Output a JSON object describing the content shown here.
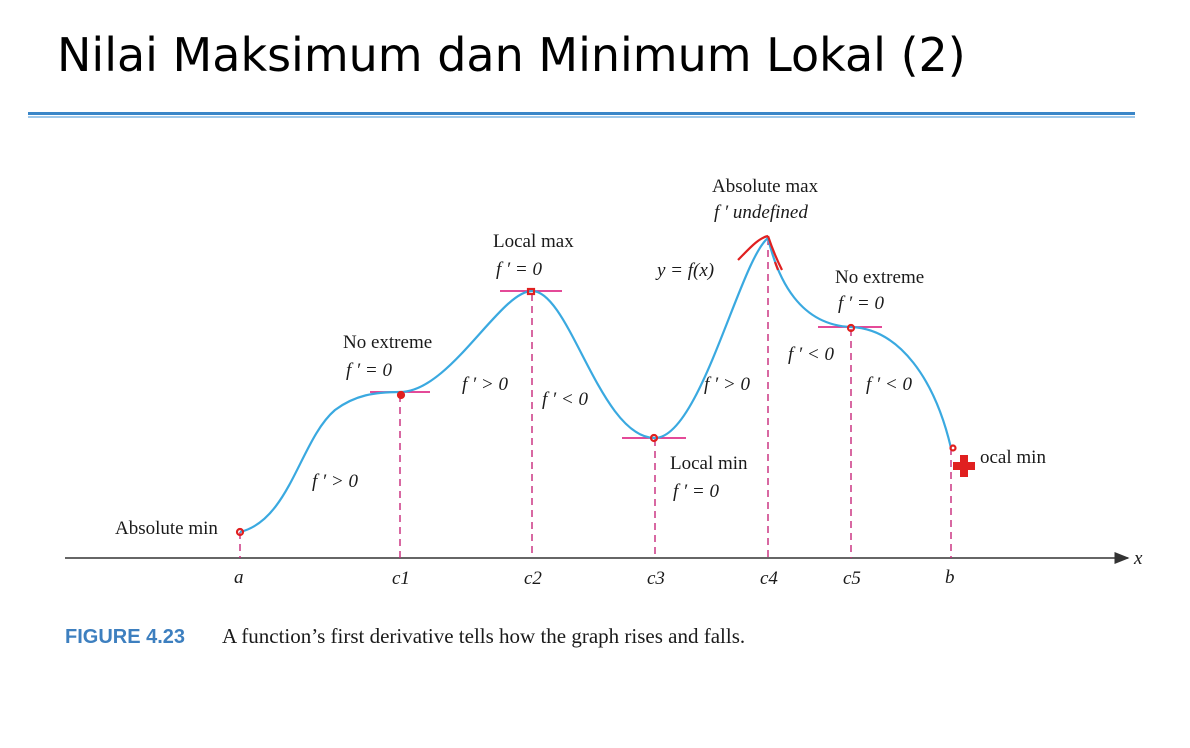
{
  "slide": {
    "title": "Nilai Maksimum dan Minimum Lokal (2)"
  },
  "figure": {
    "curve_label": "y = f(x)",
    "axis_label": "x",
    "ticks": [
      "a",
      "c1",
      "c2",
      "c3",
      "c4",
      "c5",
      "b"
    ],
    "annotations": {
      "absolute_min": "Absolute min",
      "no_extreme_1_title": "No extreme",
      "no_extreme_1_eq": "f ′ = 0",
      "local_max_title": "Local max",
      "local_max_eq": "f ′ = 0",
      "absolute_max_title": "Absolute max",
      "absolute_max_eq": "f ′  undefined",
      "no_extreme_2_title": "No extreme",
      "no_extreme_2_eq": "f ′ = 0",
      "local_min_title": "Local min",
      "local_min_eq": "f ′ = 0",
      "local_min_right": "ocal min"
    },
    "derivative_signs": {
      "seg_a_c1": "f ′ > 0",
      "seg_c1_c2": "f ′ > 0",
      "seg_c2_c3": "f ′ < 0",
      "seg_c3_c4": "f ′ > 0",
      "seg_c4_c5": "f ′ < 0",
      "seg_c5_b": "f ′ < 0"
    },
    "caption_label": "FIGURE 4.23",
    "caption_text": "A function’s first derivative tells how the graph rises and falls.",
    "colors": {
      "curve": "#3aa9e0",
      "tangent": "#e0308a",
      "marker": "#e02020",
      "dashed": "#c8287a",
      "axis": "#333333",
      "caption_label": "#3d7fbf",
      "title_rule": "#3a86c8"
    }
  }
}
